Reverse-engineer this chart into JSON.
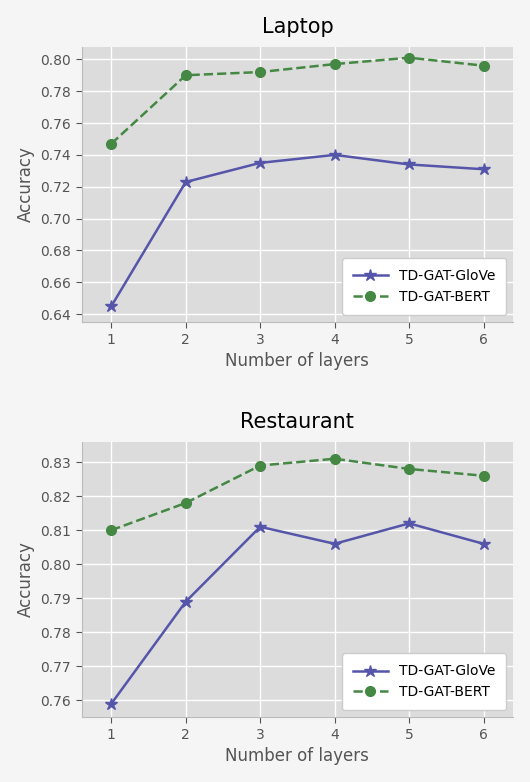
{
  "laptop": {
    "title": "Laptop",
    "xlabel": "Number of layers",
    "ylabel": "Accuracy",
    "layers": [
      1,
      2,
      3,
      4,
      5,
      6
    ],
    "glove": [
      0.645,
      0.723,
      0.735,
      0.74,
      0.734,
      0.731
    ],
    "bert": [
      0.747,
      0.79,
      0.792,
      0.797,
      0.801,
      0.796
    ],
    "ylim": [
      0.635,
      0.808
    ],
    "yticks": [
      0.64,
      0.66,
      0.68,
      0.7,
      0.72,
      0.74,
      0.76,
      0.78,
      0.8
    ]
  },
  "restaurant": {
    "title": "Restaurant",
    "xlabel": "Number of layers",
    "ylabel": "Accuracy",
    "layers": [
      1,
      2,
      3,
      4,
      5,
      6
    ],
    "glove": [
      0.759,
      0.789,
      0.811,
      0.806,
      0.812,
      0.806
    ],
    "bert": [
      0.81,
      0.818,
      0.829,
      0.831,
      0.828,
      0.826
    ],
    "ylim": [
      0.755,
      0.836
    ],
    "yticks": [
      0.76,
      0.77,
      0.78,
      0.79,
      0.8,
      0.81,
      0.82,
      0.83
    ]
  },
  "glove_color": "#5555aa",
  "bert_color": "#448844",
  "glove_label": "TD-GAT-GloVe",
  "bert_label": "TD-GAT-BERT",
  "plot_bg_color": "#dcdcdc",
  "fig_bg_color": "#f5f5f5",
  "title_fontsize": 15,
  "label_fontsize": 12,
  "tick_fontsize": 10,
  "legend_fontsize": 10,
  "grid_color": "#ffffff",
  "spine_color": "#bbbbbb"
}
